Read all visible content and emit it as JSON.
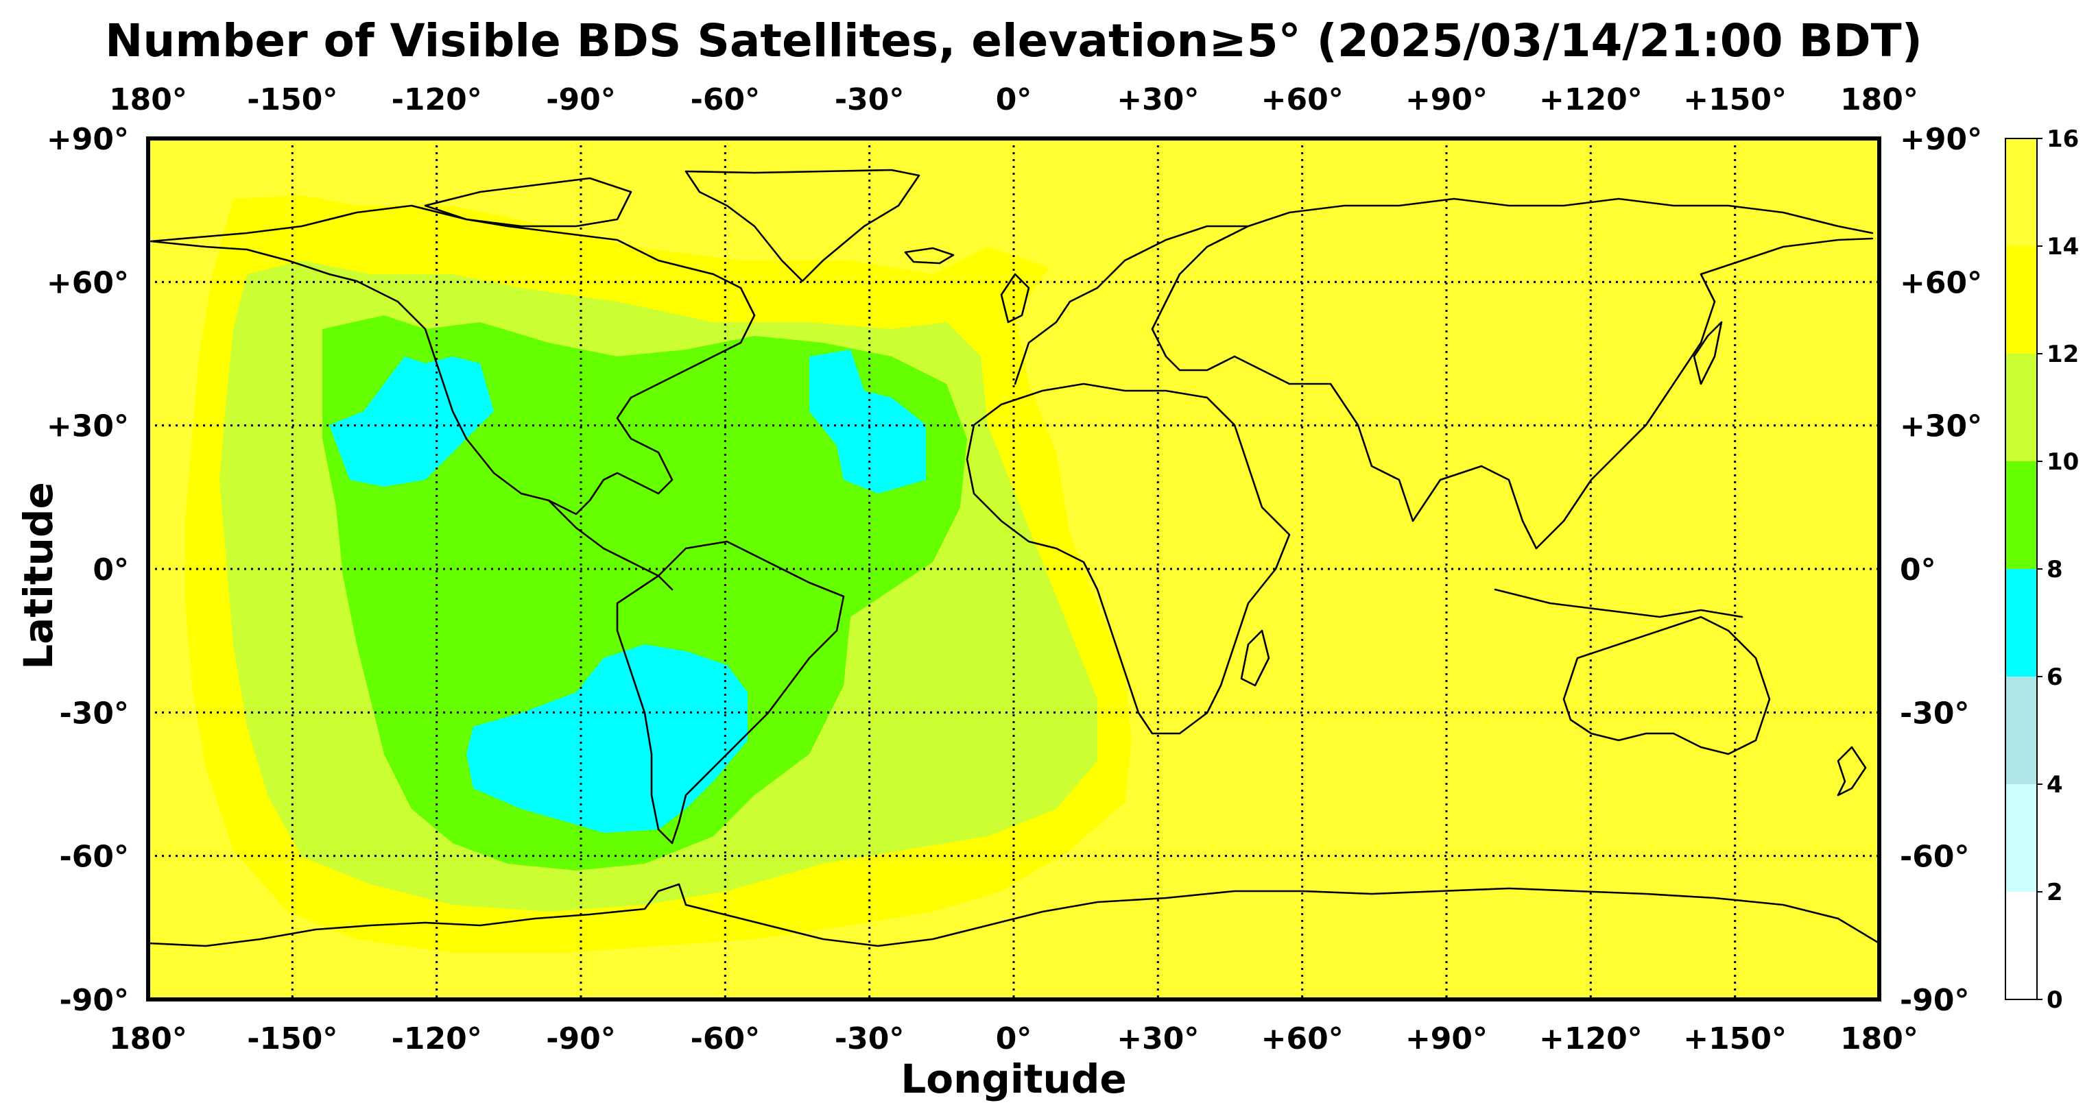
{
  "title": "Number of Visible BDS Satellites, elevation≥5° (2025/03/14/21:00 BDT)",
  "xlabel": "Longitude",
  "ylabel": "Latitude",
  "lon_ticks": [
    {
      "value": -180,
      "label": "180°"
    },
    {
      "value": -150,
      "label": "-150°"
    },
    {
      "value": -120,
      "label": "-120°"
    },
    {
      "value": -90,
      "label": "-90°"
    },
    {
      "value": -60,
      "label": "-60°"
    },
    {
      "value": -30,
      "label": "-30°"
    },
    {
      "value": 0,
      "label": "0°"
    },
    {
      "value": 30,
      "label": "+30°"
    },
    {
      "value": 60,
      "label": "+60°"
    },
    {
      "value": 90,
      "label": "+90°"
    },
    {
      "value": 120,
      "label": "+120°"
    },
    {
      "value": 150,
      "label": "+150°"
    },
    {
      "value": 180,
      "label": "180°"
    }
  ],
  "lat_ticks": [
    {
      "value": 90,
      "label": "+90°"
    },
    {
      "value": 60,
      "label": "+60°"
    },
    {
      "value": 30,
      "label": "+30°"
    },
    {
      "value": 0,
      "label": "0°"
    },
    {
      "value": -30,
      "label": "-30°"
    },
    {
      "value": -60,
      "label": "-60°"
    },
    {
      "value": -90,
      "label": "-90°"
    }
  ],
  "colorbar": {
    "levels": [
      0,
      2,
      4,
      6,
      8,
      10,
      12,
      14,
      16
    ],
    "colors": [
      "#ffffff",
      "#ccffff",
      "#aee6e6",
      "#00ffff",
      "#66ff00",
      "#ccff33",
      "#ffff00",
      "#ffff33"
    ]
  },
  "colors": {
    "background": "#ffff33",
    "band_12_14": "#ffff00",
    "band_10_12": "#ccff33",
    "band_8_10": "#66ff00",
    "band_6_8": "#00ffff"
  },
  "chart_data": {
    "type": "heatmap",
    "variable": "Number of Visible BDS Satellites",
    "xrange": [
      -180,
      180
    ],
    "yrange": [
      -90,
      90
    ],
    "grid": true,
    "projection": "equirectangular",
    "regions": [
      {
        "level": "12-14",
        "approx_lon": [
          -170,
          20
        ],
        "approx_lat": [
          -80,
          72
        ]
      },
      {
        "level": "10-12",
        "approx_lon": [
          -165,
          15
        ],
        "approx_lat": [
          -75,
          62
        ]
      },
      {
        "level": "8-10",
        "approx_lon": [
          -150,
          -5
        ],
        "approx_lat": [
          -65,
          52
        ]
      },
      {
        "level": "6-8",
        "approx_lon": [
          -145,
          -118
        ],
        "approx_lat": [
          17,
          45
        ]
      },
      {
        "level": "6-8",
        "approx_lon": [
          -38,
          -18
        ],
        "approx_lat": [
          18,
          45
        ]
      },
      {
        "level": "6-8",
        "approx_lon": [
          -115,
          -45
        ],
        "approx_lat": [
          -55,
          -18
        ]
      }
    ]
  }
}
